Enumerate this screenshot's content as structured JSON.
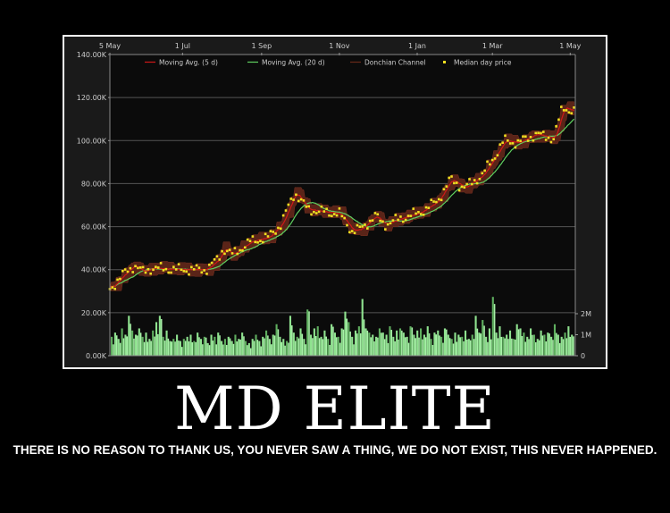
{
  "poster": {
    "title": "MD ELITE",
    "caption": "THERE IS NO REASON TO THANK US, YOU NEVER SAW A THING, WE DO NOT EXIST, THIS NEVER HAPPENED."
  },
  "chart_data": {
    "type": "line",
    "x_ticks": [
      "5 May",
      "1 Jul",
      "1 Sep",
      "1 Nov",
      "1 Jan",
      "1 Mar",
      "1 May"
    ],
    "y_ticks": [
      "0.00K",
      "20.00K",
      "40.00K",
      "60.00K",
      "80.00K",
      "100.00K",
      "120.00K",
      "140.00K"
    ],
    "ylim": [
      0,
      140000
    ],
    "volume_ticks": [
      "0",
      "1M",
      "2M"
    ],
    "volume_ylim": [
      0,
      2000000
    ],
    "grid": true,
    "legend_placement": "top",
    "legend": [
      {
        "name": "Moving Avg. (5 d)",
        "color": "#d01818"
      },
      {
        "name": "Moving Avg. (20 d)",
        "color": "#60d060"
      },
      {
        "name": "Donchian Channel",
        "color": "#6a2a1a"
      },
      {
        "name": "Median day price",
        "color": "#f0e020"
      }
    ],
    "median_price": [
      [
        "05-05",
        31000
      ],
      [
        "05-17",
        38700
      ],
      [
        "05-24",
        42000
      ],
      [
        "05-31",
        39000
      ],
      [
        "06-07",
        40700
      ],
      [
        "06-28",
        40000
      ],
      [
        "07-19",
        40000
      ],
      [
        "07-29",
        45000
      ],
      [
        "08-02",
        50000
      ],
      [
        "08-09",
        47000
      ],
      [
        "08-23",
        53000
      ],
      [
        "09-06",
        55000
      ],
      [
        "09-16",
        61000
      ],
      [
        "09-27",
        76000
      ],
      [
        "10-07",
        68000
      ],
      [
        "10-18",
        67000
      ],
      [
        "11-01",
        66000
      ],
      [
        "11-11",
        58000
      ],
      [
        "11-18",
        59000
      ],
      [
        "11-29",
        65000
      ],
      [
        "12-06",
        61000
      ],
      [
        "12-20",
        64000
      ],
      [
        "01-03",
        66500
      ],
      [
        "01-17",
        72000
      ],
      [
        "01-27",
        82000
      ],
      [
        "02-07",
        78000
      ],
      [
        "02-21",
        84000
      ],
      [
        "03-03",
        93000
      ],
      [
        "03-10",
        100000
      ],
      [
        "03-21",
        99000
      ],
      [
        "04-04",
        103000
      ],
      [
        "04-18",
        101000
      ],
      [
        "04-25",
        115500
      ],
      [
        "05-04",
        113500
      ]
    ],
    "volume_millions": [
      0.9,
      1.1,
      0.8,
      1.3,
      1.0,
      1.9,
      1.2,
      1.0,
      1.3,
      0.9,
      1.1,
      0.8,
      1.2,
      1.6,
      1.9,
      0.9,
      1.2,
      0.7,
      0.8,
      1.0,
      0.7,
      0.8,
      0.9,
      1.0,
      0.7,
      1.1,
      0.8,
      0.9,
      0.6,
      1.0,
      0.9,
      1.1,
      0.7,
      0.8,
      0.9,
      0.7,
      1.0,
      0.8,
      1.1,
      0.7,
      0.6,
      0.8,
      1.0,
      0.7,
      0.9,
      1.2,
      0.8,
      1.0,
      1.5,
      0.9,
      0.8,
      0.7,
      1.9,
      1.1,
      0.9,
      1.3,
      0.8,
      2.2,
      1.0,
      1.3,
      1.4,
      0.9,
      1.2,
      0.8,
      1.5,
      1.1,
      0.9,
      1.3,
      2.1,
      1.6,
      0.9,
      1.2,
      1.4,
      2.7,
      1.3,
      1.1,
      1.0,
      0.9,
      1.3,
      1.1,
      1.0,
      1.4,
      0.9,
      1.2,
      1.3,
      1.1,
      0.9,
      1.4,
      1.0,
      1.2,
      1.3,
      1.0,
      1.4,
      0.8,
      1.1,
      1.2,
      0.9,
      1.3,
      1.0,
      0.8,
      1.1,
      1.0,
      0.9,
      1.2,
      0.8,
      1.0,
      1.9,
      1.1,
      1.7,
      0.9,
      1.3,
      2.8,
      1.1,
      1.4,
      0.9,
      1.0,
      1.2,
      0.8,
      1.5,
      1.3,
      1.1,
      0.9,
      1.3,
      1.0,
      0.8,
      1.2,
      1.0,
      1.1,
      0.9,
      1.5,
      1.0,
      0.9,
      1.1,
      1.4,
      1.0
    ]
  }
}
